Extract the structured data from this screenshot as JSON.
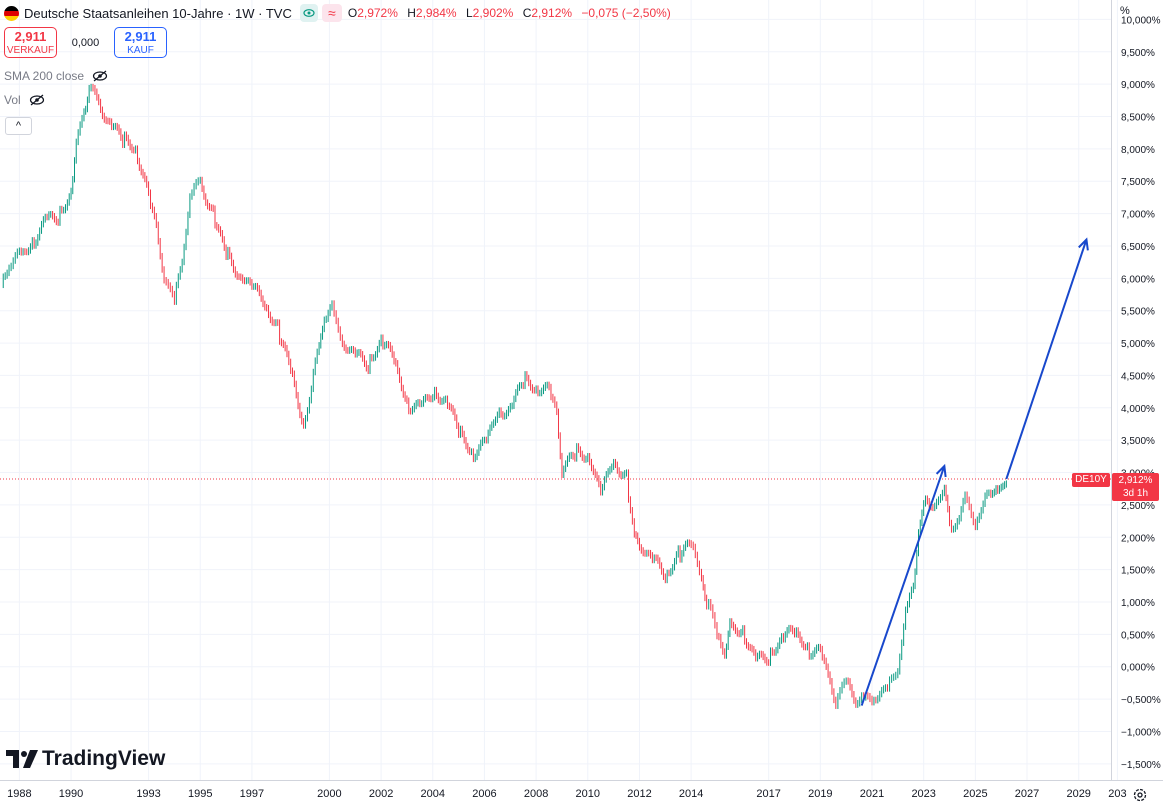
{
  "header": {
    "title": "Deutsche Staatsanleihen 10-Jahre · 1W · TVC",
    "ohlc": {
      "o_label": "O",
      "o_value": "2,972%",
      "h_label": "H",
      "h_value": "2,984%",
      "l_label": "L",
      "l_value": "2,902%",
      "c_label": "C",
      "c_value": "2,912%",
      "change": "−0,075 (−2,50%)"
    },
    "wave_glyph": "≈"
  },
  "trade": {
    "sell_price": "2,911",
    "sell_label": "VERKAUF",
    "spread": "0,000",
    "buy_price": "2,911",
    "buy_label": "KAUF"
  },
  "indicators": [
    {
      "label": "SMA 200 close"
    },
    {
      "label": "Vol"
    }
  ],
  "collapse_glyph": "^",
  "brand": {
    "logo_text": "TradingView"
  },
  "price_axis": {
    "unit": "%",
    "ticks": [
      "10,000%",
      "9,500%",
      "9,000%",
      "8,500%",
      "8,000%",
      "7,500%",
      "7,000%",
      "6,500%",
      "6,000%",
      "5,500%",
      "5,000%",
      "4,500%",
      "4,000%",
      "3,500%",
      "3,000%",
      "2,500%",
      "2,000%",
      "1,500%",
      "1,000%",
      "0,500%",
      "0,000%",
      "−0,500%",
      "−1,000%",
      "−1,500%"
    ],
    "symbol_tag": "DE10Y",
    "current_price": "2,912%",
    "countdown": "3d 1h"
  },
  "time_axis": {
    "labels": [
      "1988",
      "1990",
      "1993",
      "1995",
      "1997",
      "2000",
      "2002",
      "2004",
      "2006",
      "2008",
      "2010",
      "2012",
      "2014",
      "2017",
      "2019",
      "2021",
      "2023",
      "2025",
      "2027",
      "2029",
      "203"
    ]
  },
  "colors": {
    "up": "#089981",
    "down": "#f23645",
    "arrow": "#1848cc",
    "grid": "#f0f3fa",
    "price_line": "#f23645"
  },
  "chart_data": {
    "type": "line",
    "title": "Deutsche Staatsanleihen 10-Jahre",
    "interval": "1W",
    "ylim": [
      -1.75,
      10.3
    ],
    "xlim": [
      1987.25,
      2030.25
    ],
    "grid": true,
    "x": [
      1987.3,
      1987.6,
      1988.0,
      1988.5,
      1989.0,
      1989.5,
      1990.0,
      1990.2,
      1990.5,
      1990.7,
      1991.0,
      1991.5,
      1992.0,
      1992.5,
      1993.0,
      1993.3,
      1993.6,
      1994.0,
      1994.3,
      1994.6,
      1995.0,
      1995.5,
      1996.0,
      1996.5,
      1997.0,
      1997.5,
      1998.0,
      1998.5,
      1999.0,
      1999.3,
      1999.6,
      1999.8,
      2000.1,
      2000.5,
      2001.0,
      2001.5,
      2002.0,
      2002.5,
      2003.0,
      2003.5,
      2004.0,
      2004.5,
      2005.0,
      2005.5,
      2006.0,
      2006.5,
      2007.0,
      2007.5,
      2008.0,
      2008.5,
      2008.8,
      2009.0,
      2009.5,
      2010.0,
      2010.5,
      2011.0,
      2011.5,
      2011.8,
      2012.0,
      2012.5,
      2013.0,
      2013.5,
      2014.0,
      2014.4,
      2014.6,
      2015.0,
      2015.3,
      2015.5,
      2016.0,
      2016.5,
      2017.0,
      2017.5,
      2018.0,
      2018.5,
      2019.0,
      2019.3,
      2019.6,
      2020.0,
      2020.3,
      2020.6,
      2021.0,
      2021.3,
      2021.6,
      2022.0,
      2022.3,
      2022.6,
      2022.8,
      2023.0,
      2023.5,
      2023.8,
      2024.0,
      2024.3,
      2024.6,
      2025.0,
      2025.3,
      2025.6,
      2025.8,
      2026.0,
      2026.2
    ],
    "series": [
      {
        "name": "DE10Y",
        "values": [
          5.9,
          6.2,
          6.3,
          6.6,
          6.9,
          7.0,
          7.3,
          8.0,
          8.6,
          9.0,
          8.8,
          8.4,
          8.1,
          8.0,
          7.2,
          6.8,
          6.1,
          5.6,
          6.3,
          7.2,
          7.5,
          7.0,
          6.4,
          6.1,
          5.8,
          5.6,
          5.2,
          4.6,
          3.8,
          4.3,
          4.9,
          5.4,
          5.5,
          5.1,
          4.8,
          4.7,
          5.0,
          4.7,
          4.1,
          4.0,
          4.3,
          4.1,
          3.6,
          3.3,
          3.4,
          4.0,
          4.0,
          4.4,
          4.3,
          4.2,
          3.9,
          3.1,
          3.3,
          3.3,
          2.6,
          3.2,
          2.9,
          2.0,
          1.9,
          1.6,
          1.4,
          1.7,
          1.9,
          1.5,
          1.0,
          0.5,
          0.2,
          0.6,
          0.6,
          0.1,
          0.2,
          0.4,
          0.5,
          0.3,
          0.2,
          -0.1,
          -0.5,
          -0.3,
          -0.5,
          -0.5,
          -0.5,
          -0.3,
          -0.4,
          0.0,
          0.8,
          1.2,
          2.2,
          2.5,
          2.6,
          2.7,
          2.1,
          2.3,
          2.6,
          2.3,
          2.5,
          2.6,
          2.8,
          2.7,
          2.9
        ]
      }
    ],
    "annotations": [
      {
        "type": "arrow",
        "from": [
          2020.6,
          -0.6
        ],
        "to": [
          2023.8,
          3.1
        ]
      },
      {
        "type": "arrow",
        "from": [
          2026.2,
          2.9
        ],
        "to": [
          2029.3,
          6.6
        ]
      }
    ]
  }
}
